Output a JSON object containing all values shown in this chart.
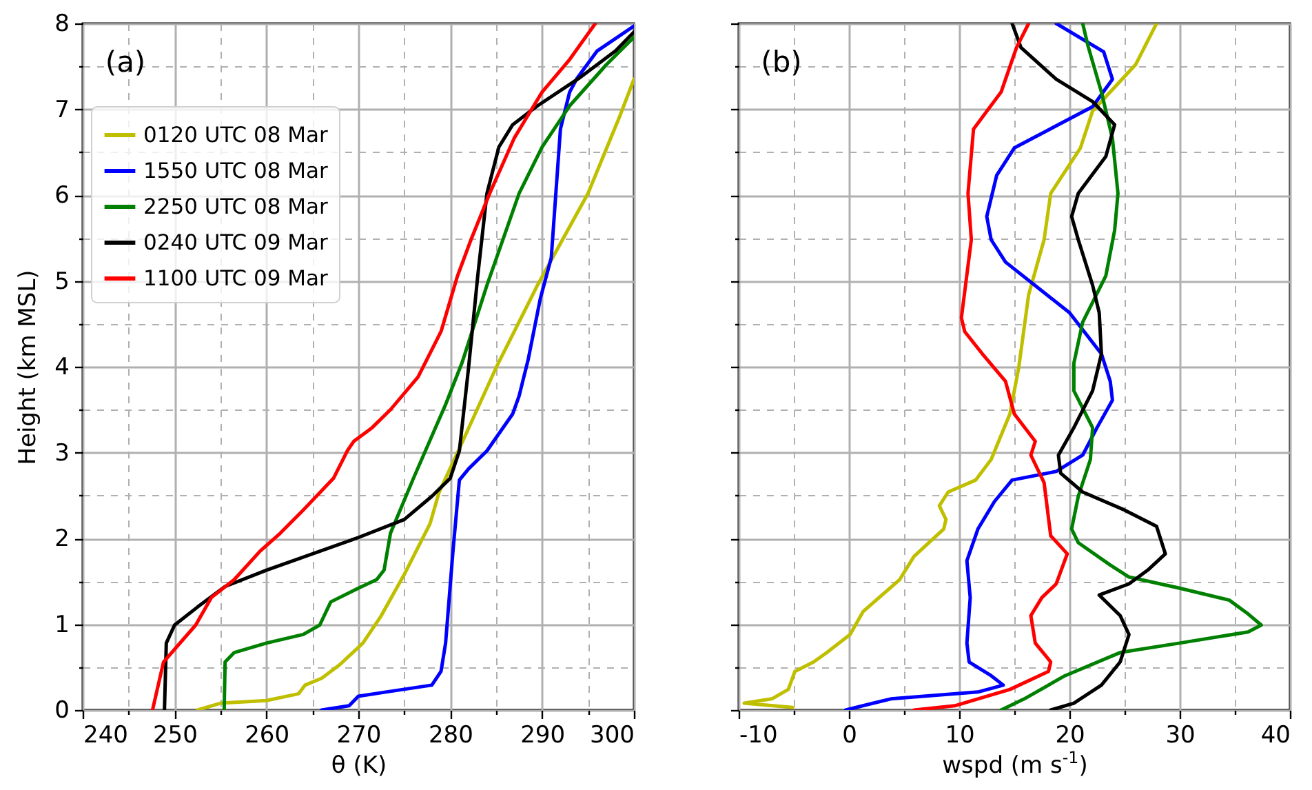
{
  "chart_data": [
    {
      "type": "line",
      "xlabel": "θ (K)",
      "ylabel": "Height (km MSL)",
      "annotations": [
        "(a)"
      ],
      "legend": "top left",
      "grid": true,
      "xlim": [
        240,
        300
      ],
      "ylim": [
        0,
        8
      ],
      "xticks": [
        240,
        {
          "value": 245,
          "label": null
        },
        250,
        {
          "value": 255,
          "label": null
        },
        260,
        {
          "value": 265,
          "label": null
        },
        270,
        {
          "value": 275,
          "label": null
        },
        280,
        {
          "value": 285,
          "label": null
        },
        290,
        {
          "value": 295,
          "label": null
        },
        300
      ],
      "yticks": [
        0,
        {
          "value": 0.5,
          "label": null
        },
        1,
        {
          "value": 1.5,
          "label": null
        },
        2,
        {
          "value": 2.5,
          "label": null
        },
        3,
        {
          "value": 3.5,
          "label": null
        },
        4,
        {
          "value": 4.5,
          "label": null
        },
        5,
        {
          "value": 5.5,
          "label": null
        },
        6,
        {
          "value": 6.5,
          "label": null
        },
        7,
        {
          "value": 7.5,
          "label": null
        },
        8
      ],
      "series": [
        {
          "name": "0120 UTC 08 Mar",
          "color": "#bfbf00",
          "x": [
            252.5,
            255,
            260,
            263.5,
            264.2,
            266,
            268,
            270.5,
            272.5,
            275,
            277.8,
            278.8,
            280.8,
            285,
            289.5,
            295,
            298.5,
            300
          ],
          "values": [
            0,
            0.08,
            0.11,
            0.19,
            0.29,
            0.37,
            0.53,
            0.78,
            1.1,
            1.58,
            2.17,
            2.54,
            3.0,
            3.99,
            4.95,
            6.02,
            6.93,
            7.35
          ]
        },
        {
          "name": "1550 UTC 08 Mar",
          "color": "#0000ff",
          "x": [
            266,
            269,
            270,
            273,
            278,
            279,
            279.5,
            280.3,
            281,
            282,
            284,
            286.8,
            287.5,
            288.5,
            289.8,
            291,
            291.5,
            292,
            293,
            293.8,
            296,
            300
          ],
          "values": [
            0,
            0.05,
            0.16,
            0.21,
            0.29,
            0.45,
            0.78,
            1.85,
            2.68,
            2.81,
            3.02,
            3.45,
            3.66,
            4.09,
            4.79,
            5.27,
            6.02,
            6.77,
            7.2,
            7.36,
            7.68,
            7.97
          ]
        },
        {
          "name": "2250 UTC 08 Mar",
          "color": "#008000",
          "x": [
            255.4,
            255.5,
            256.5,
            260,
            264,
            265.8,
            267,
            270,
            272,
            272.8,
            273.5,
            276,
            279.5,
            281.3,
            284,
            287.5,
            290,
            293,
            297,
            300
          ],
          "values": [
            0,
            0.56,
            0.67,
            0.78,
            0.88,
            0.99,
            1.26,
            1.42,
            1.52,
            1.63,
            2.06,
            2.7,
            3.56,
            4.05,
            4.95,
            6.02,
            6.56,
            7.04,
            7.52,
            7.84
          ]
        },
        {
          "name": "0240 UTC 09 Mar",
          "color": "#000000",
          "x": [
            248.9,
            249.1,
            250,
            252.5,
            255.5,
            260,
            270,
            275,
            278,
            280,
            281,
            282,
            283,
            284,
            285.3,
            286.8,
            289.5,
            294,
            298,
            300
          ],
          "values": [
            0,
            0.78,
            0.99,
            1.2,
            1.44,
            1.63,
            2.01,
            2.22,
            2.49,
            2.7,
            3.02,
            3.99,
            5.06,
            6.02,
            6.56,
            6.82,
            7.04,
            7.36,
            7.68,
            7.9
          ]
        },
        {
          "name": "1100 UTC 09 Mar",
          "color": "#ff0000",
          "x": [
            247.6,
            248.8,
            252.3,
            254,
            256.5,
            259.3,
            261.5,
            264,
            267.3,
            268.8,
            269.5,
            271.5,
            273.5,
            276.5,
            279,
            280.8,
            282.3,
            284.3,
            287,
            290,
            293,
            295.8
          ],
          "values": [
            0,
            0.56,
            0.99,
            1.31,
            1.52,
            1.85,
            2.06,
            2.33,
            2.7,
            3.02,
            3.13,
            3.29,
            3.5,
            3.88,
            4.41,
            5.06,
            5.49,
            6.02,
            6.67,
            7.2,
            7.58,
            8.0
          ]
        }
      ]
    },
    {
      "type": "line",
      "xlabel": "wspd (m s$^{-1}$)",
      "annotations": [
        "(b)"
      ],
      "grid": true,
      "tick_labels": "x",
      "xlim": [
        -10,
        40
      ],
      "ylim": [
        0,
        8
      ],
      "xticks": [
        -10,
        {
          "value": -5,
          "label": null
        },
        0,
        {
          "value": 5,
          "label": null
        },
        10,
        {
          "value": 15,
          "label": null
        },
        20,
        {
          "value": 25,
          "label": null
        },
        30,
        {
          "value": 35,
          "label": null
        },
        40
      ],
      "yticks": [
        0,
        {
          "value": 0.5,
          "label": null
        },
        1,
        {
          "value": 1.5,
          "label": null
        },
        2,
        {
          "value": 2.5,
          "label": null
        },
        3,
        {
          "value": 3.5,
          "label": null
        },
        4,
        {
          "value": 4.5,
          "label": null
        },
        5,
        {
          "value": 5.5,
          "label": null
        },
        6,
        {
          "value": 6.5,
          "label": null
        },
        7,
        {
          "value": 7.5,
          "label": null
        },
        8
      ],
      "series": [
        {
          "color": "#bfbf00",
          "x": [
            -5.1,
            -9.5,
            -7.0,
            -5.5,
            -4.9,
            -3.2,
            -2.0,
            0.1,
            1.3,
            4.6,
            5.9,
            8.6,
            8.8,
            8.2,
            9.0,
            11.5,
            12.9,
            14.6,
            15.4,
            16.3,
            17.7,
            18.3,
            21.0,
            22.1,
            26.0,
            27.9
          ],
          "values": [
            0.03,
            0.08,
            0.13,
            0.24,
            0.45,
            0.56,
            0.67,
            0.88,
            1.15,
            1.52,
            1.79,
            2.11,
            2.22,
            2.38,
            2.54,
            2.68,
            2.92,
            3.45,
            3.99,
            4.84,
            5.48,
            6.02,
            6.55,
            6.98,
            7.52,
            8.0
          ]
        },
        {
          "color": "#0000ff",
          "x": [
            -0.3,
            3.8,
            11.7,
            14.0,
            12.9,
            10.9,
            10.7,
            11.0,
            10.7,
            11.7,
            13.2,
            14.8,
            18.8,
            21.2,
            22.5,
            23.9,
            23.7,
            22.9,
            20.0,
            14.2,
            12.9,
            12.5,
            13.4,
            15.0,
            22.1,
            23.9,
            23.1,
            18.8
          ],
          "values": [
            0,
            0.13,
            0.21,
            0.29,
            0.4,
            0.56,
            0.78,
            1.31,
            1.74,
            2.11,
            2.43,
            2.68,
            2.78,
            2.97,
            3.29,
            3.61,
            3.83,
            4.15,
            4.63,
            5.22,
            5.48,
            5.75,
            6.23,
            6.55,
            7.03,
            7.35,
            7.67,
            8.0
          ]
        },
        {
          "color": "#008000",
          "x": [
            13.8,
            15.9,
            19.6,
            24.6,
            30.0,
            36.2,
            37.4,
            36.2,
            34.5,
            30.0,
            25.4,
            23.7,
            20.8,
            20.2,
            20.8,
            21.9,
            22.1,
            20.4,
            20.4,
            21.2,
            23.3,
            24.1,
            24.4,
            23.9,
            22.9,
            21.7,
            21.2
          ],
          "values": [
            0,
            0.13,
            0.4,
            0.67,
            0.78,
            0.91,
            0.99,
            1.12,
            1.28,
            1.42,
            1.55,
            1.69,
            1.95,
            2.11,
            2.49,
            2.92,
            3.29,
            3.72,
            4.04,
            4.52,
            5.06,
            5.59,
            6.02,
            6.66,
            7.2,
            7.73,
            8.0
          ]
        },
        {
          "color": "#000000",
          "x": [
            18.3,
            20.4,
            22.9,
            24.6,
            25.4,
            24.6,
            22.7,
            25.4,
            27.1,
            28.7,
            27.9,
            25.0,
            21.2,
            19.2,
            19.0,
            20.4,
            22.1,
            22.9,
            22.7,
            22.1,
            20.8,
            20.2,
            20.8,
            23.3,
            24.1,
            22.1,
            18.8,
            15.6,
            14.8
          ],
          "values": [
            0,
            0.08,
            0.29,
            0.56,
            0.88,
            1.1,
            1.34,
            1.47,
            1.63,
            1.82,
            2.14,
            2.33,
            2.54,
            2.76,
            2.97,
            3.29,
            3.72,
            4.15,
            4.63,
            4.95,
            5.48,
            5.75,
            6.02,
            6.45,
            6.82,
            7.09,
            7.35,
            7.72,
            8.0
          ]
        },
        {
          "color": "#ff0000",
          "x": [
            5.9,
            9.6,
            14.6,
            18.1,
            18.3,
            16.9,
            16.5,
            17.5,
            18.8,
            19.8,
            18.3,
            17.7,
            16.5,
            16.9,
            15.0,
            14.2,
            12.1,
            10.5,
            10.2,
            11.1,
            10.8,
            11.3,
            13.8,
            15.2,
            16.3
          ],
          "values": [
            0,
            0.05,
            0.24,
            0.45,
            0.56,
            0.78,
            1.1,
            1.31,
            1.47,
            1.82,
            2.03,
            2.65,
            2.97,
            3.13,
            3.45,
            3.83,
            4.15,
            4.41,
            4.57,
            5.48,
            6.02,
            6.77,
            7.2,
            7.72,
            8.0
          ]
        }
      ]
    }
  ]
}
